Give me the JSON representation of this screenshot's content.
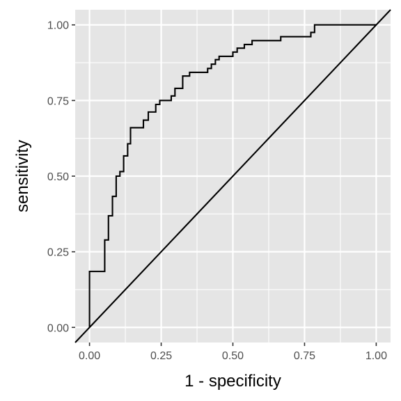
{
  "chart_data": {
    "type": "line",
    "title": "",
    "xlabel": "1 - specificity",
    "ylabel": "sensitivity",
    "xlim": [
      -0.05,
      1.05
    ],
    "ylim": [
      -0.05,
      1.05
    ],
    "x_ticks": [
      0,
      0.25,
      0.5,
      0.75,
      1
    ],
    "x_tick_labels": [
      "0.00",
      "0.25",
      "0.50",
      "0.75",
      "1.00"
    ],
    "y_ticks": [
      0,
      0.25,
      0.5,
      0.75,
      1
    ],
    "y_tick_labels": [
      "0.00",
      "0.25",
      "0.50",
      "0.75",
      "1.00"
    ],
    "grid": true,
    "legend": "none",
    "colors": {
      "panel": "#e5e5e5",
      "grid": "#ffffff",
      "line": "#000000"
    },
    "series": [
      {
        "style": "step",
        "x": [
          0.0,
          0.0,
          0.053,
          0.053,
          0.066,
          0.066,
          0.08,
          0.08,
          0.093,
          0.093,
          0.106,
          0.106,
          0.119,
          0.119,
          0.133,
          0.133,
          0.143,
          0.143,
          0.188,
          0.188,
          0.205,
          0.205,
          0.231,
          0.231,
          0.245,
          0.245,
          0.285,
          0.285,
          0.298,
          0.298,
          0.325,
          0.325,
          0.349,
          0.349,
          0.412,
          0.412,
          0.425,
          0.425,
          0.439,
          0.439,
          0.452,
          0.452,
          0.5,
          0.5,
          0.515,
          0.515,
          0.54,
          0.54,
          0.567,
          0.567,
          0.667,
          0.667,
          0.772,
          0.772,
          0.785,
          0.785,
          1.0
        ],
        "y": [
          0.0,
          0.185,
          0.185,
          0.289,
          0.289,
          0.369,
          0.369,
          0.433,
          0.433,
          0.5,
          0.5,
          0.515,
          0.515,
          0.567,
          0.567,
          0.607,
          0.607,
          0.66,
          0.66,
          0.685,
          0.685,
          0.712,
          0.712,
          0.737,
          0.737,
          0.75,
          0.75,
          0.765,
          0.765,
          0.79,
          0.79,
          0.831,
          0.831,
          0.843,
          0.843,
          0.856,
          0.856,
          0.87,
          0.87,
          0.885,
          0.885,
          0.896,
          0.896,
          0.91,
          0.91,
          0.923,
          0.923,
          0.935,
          0.935,
          0.948,
          0.948,
          0.961,
          0.961,
          0.975,
          0.975,
          1.0,
          1.0
        ]
      },
      {
        "style": "line",
        "x": [
          -0.05,
          1.05
        ],
        "y": [
          -0.05,
          1.05
        ]
      }
    ]
  }
}
